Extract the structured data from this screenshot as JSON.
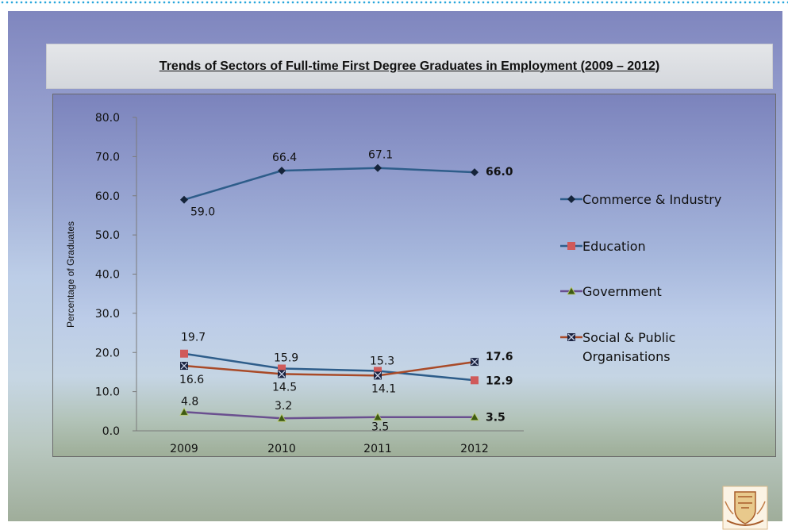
{
  "slide": {
    "title": "Trends of Sectors of Full-time First Degree Graduates in Employment (2009 – 2012)"
  },
  "chart_data": {
    "type": "line",
    "categories": [
      "2009",
      "2010",
      "2011",
      "2012"
    ],
    "ylabel": "Percentage of Graduates",
    "xlabel": "",
    "ylim": [
      0,
      80
    ],
    "yticks": [
      "0.0",
      "10.0",
      "20.0",
      "30.0",
      "40.0",
      "50.0",
      "60.0",
      "70.0",
      "80.0"
    ],
    "grid": false,
    "legend_position": "right",
    "series": [
      {
        "name": "Commerce & Industry",
        "values": [
          59.0,
          66.4,
          67.1,
          66.0
        ],
        "labels": [
          "59.0",
          "66.4",
          "67.1",
          "66.0"
        ],
        "color": "#2e5d8a",
        "marker": "diamond",
        "marker_color": "#15243a"
      },
      {
        "name": "Education",
        "values": [
          19.7,
          15.9,
          15.3,
          12.9
        ],
        "labels": [
          "19.7",
          "15.9",
          "15.3",
          "12.9"
        ],
        "color": "#2e5d8a",
        "marker": "square",
        "marker_color": "#d05a5a"
      },
      {
        "name": "Government",
        "values": [
          4.8,
          3.2,
          3.5,
          3.5
        ],
        "labels": [
          "4.8",
          "3.2",
          "3.5",
          "3.5"
        ],
        "color": "#6a4f8f",
        "marker": "triangle",
        "marker_color": "#3e5a12"
      },
      {
        "name": "Social & Public Organisations",
        "legend_lines": [
          "Social & Public",
          "Organisations"
        ],
        "values": [
          16.6,
          14.5,
          14.1,
          17.6
        ],
        "labels": [
          "16.6",
          "14.5",
          "14.1",
          "17.6"
        ],
        "color": "#a94a28",
        "marker": "x-square",
        "marker_color": "#1b2340"
      }
    ]
  },
  "logo": {
    "icon": "university-crest-icon"
  }
}
